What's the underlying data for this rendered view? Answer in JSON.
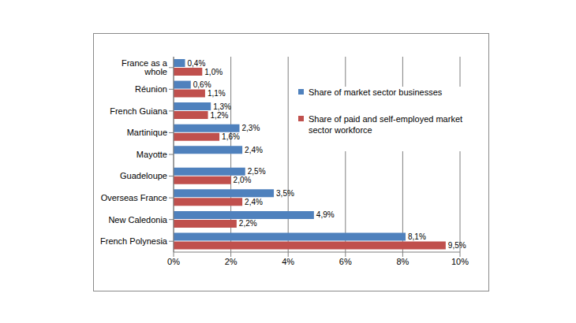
{
  "chart_data": {
    "type": "bar",
    "orientation": "horizontal",
    "categories": [
      "France as a whole",
      "Réunion",
      "French Guiana",
      "Martinique",
      "Mayotte",
      "Guadeloupe",
      "Overseas France",
      "New Caledonia",
      "French Polynesia"
    ],
    "series": [
      {
        "name": "Share of market sector businesses",
        "color": "#4f81bd",
        "values": [
          0.4,
          0.6,
          1.3,
          2.3,
          2.4,
          2.5,
          3.5,
          4.9,
          8.1
        ],
        "value_labels": [
          "0,4%",
          "0,6%",
          "1,3%",
          "2,3%",
          "2,4%",
          "2,5%",
          "3,5%",
          "4,9%",
          "8,1%"
        ]
      },
      {
        "name": "Share of paid and self-employed market sector workforce",
        "color": "#c0504d",
        "values": [
          1.0,
          1.1,
          1.2,
          1.6,
          null,
          2.0,
          2.4,
          2.2,
          9.5
        ],
        "value_labels": [
          "1,0%",
          "1,1%",
          "1,2%",
          "1,6%",
          null,
          "2,0%",
          "2,4%",
          "2,2%",
          "9,5%"
        ]
      }
    ],
    "xlim": [
      0,
      10
    ],
    "xticks": [
      {
        "value": 0,
        "label": "0%"
      },
      {
        "value": 2,
        "label": "2%"
      },
      {
        "value": 4,
        "label": "4%"
      },
      {
        "value": 6,
        "label": "6%"
      },
      {
        "value": 8,
        "label": "8%"
      },
      {
        "value": 10,
        "label": "10%"
      }
    ],
    "grid": true,
    "legend": "upper right",
    "data_labels": true
  }
}
